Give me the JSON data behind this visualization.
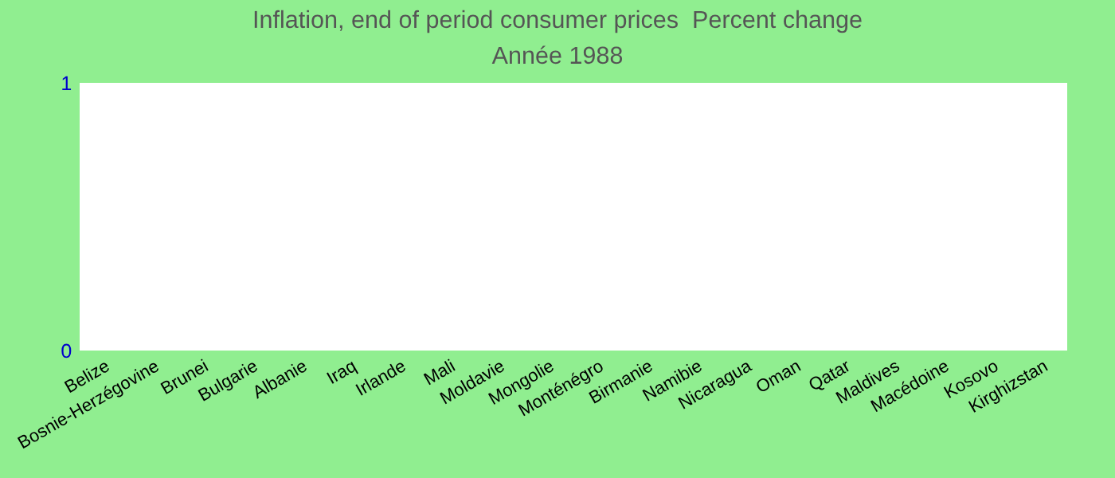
{
  "chart_data": {
    "type": "bar",
    "title": "Inflation, end of period consumer prices  Percent change",
    "subtitle": "Année 1988",
    "categories": [
      "Belize",
      "Bosnie-Herzégovine",
      "Brunei",
      "Bulgarie",
      "Albanie",
      "Iraq",
      "Irlande",
      "Mali",
      "Moldavie",
      "Mongolie",
      "Monténégro",
      "Birmanie",
      "Namibie",
      "Nicaragua",
      "Oman",
      "Qatar",
      "Maldives",
      "Macédoine",
      "Kosovo",
      "Kirghizstan"
    ],
    "values": [
      null,
      null,
      null,
      null,
      null,
      null,
      null,
      null,
      null,
      null,
      null,
      null,
      null,
      null,
      null,
      null,
      null,
      null,
      null,
      null
    ],
    "ylim": [
      0,
      1
    ],
    "yticks": [
      0,
      1
    ],
    "grid": false,
    "legend": false
  }
}
